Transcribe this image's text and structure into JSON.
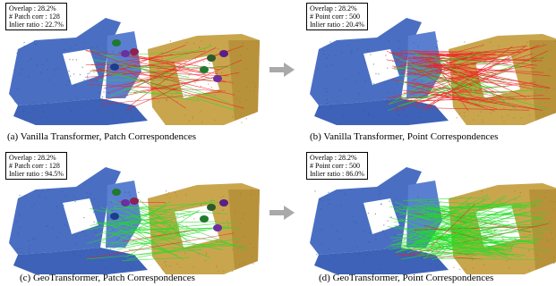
{
  "panels": [
    {
      "caption": "(a) Vanilla Transformer, Patch Correspondences",
      "stats": [
        {
          "label": "Overlap :",
          "value": "28.2%"
        },
        {
          "label": "# Patch corr :",
          "value": "128"
        },
        {
          "label": "Inlier ratio :",
          "value": "22.7%"
        }
      ]
    },
    {
      "caption": "(b) Vanilla Transformer, Point Correspondences",
      "stats": [
        {
          "label": "Overlap :",
          "value": "28.2%"
        },
        {
          "label": "# Point corr :",
          "value": "500"
        },
        {
          "label": "Inlier ratio :",
          "value": "20.4%"
        }
      ]
    },
    {
      "caption": "(c) GeoTransformer, Patch Correspondences",
      "stats": [
        {
          "label": "Overlap :",
          "value": "28.2%"
        },
        {
          "label": "# Patch corr :",
          "value": "128"
        },
        {
          "label": "Inlier ratio :",
          "value": "94.5%"
        }
      ]
    },
    {
      "caption": "(d) GeoTransformer, Point Correspondences",
      "stats": [
        {
          "label": "Overlap :",
          "value": "28.2%"
        },
        {
          "label": "# Point corr :",
          "value": "500"
        },
        {
          "label": "Inlier ratio :",
          "value": "86.0%"
        }
      ]
    }
  ],
  "colors": {
    "source_cloud": "#4a6fc2",
    "target_cloud": "#c9a64e",
    "inlier": "#22dd22",
    "outlier": "#ee2222",
    "arrow": "#a9a9a9"
  }
}
